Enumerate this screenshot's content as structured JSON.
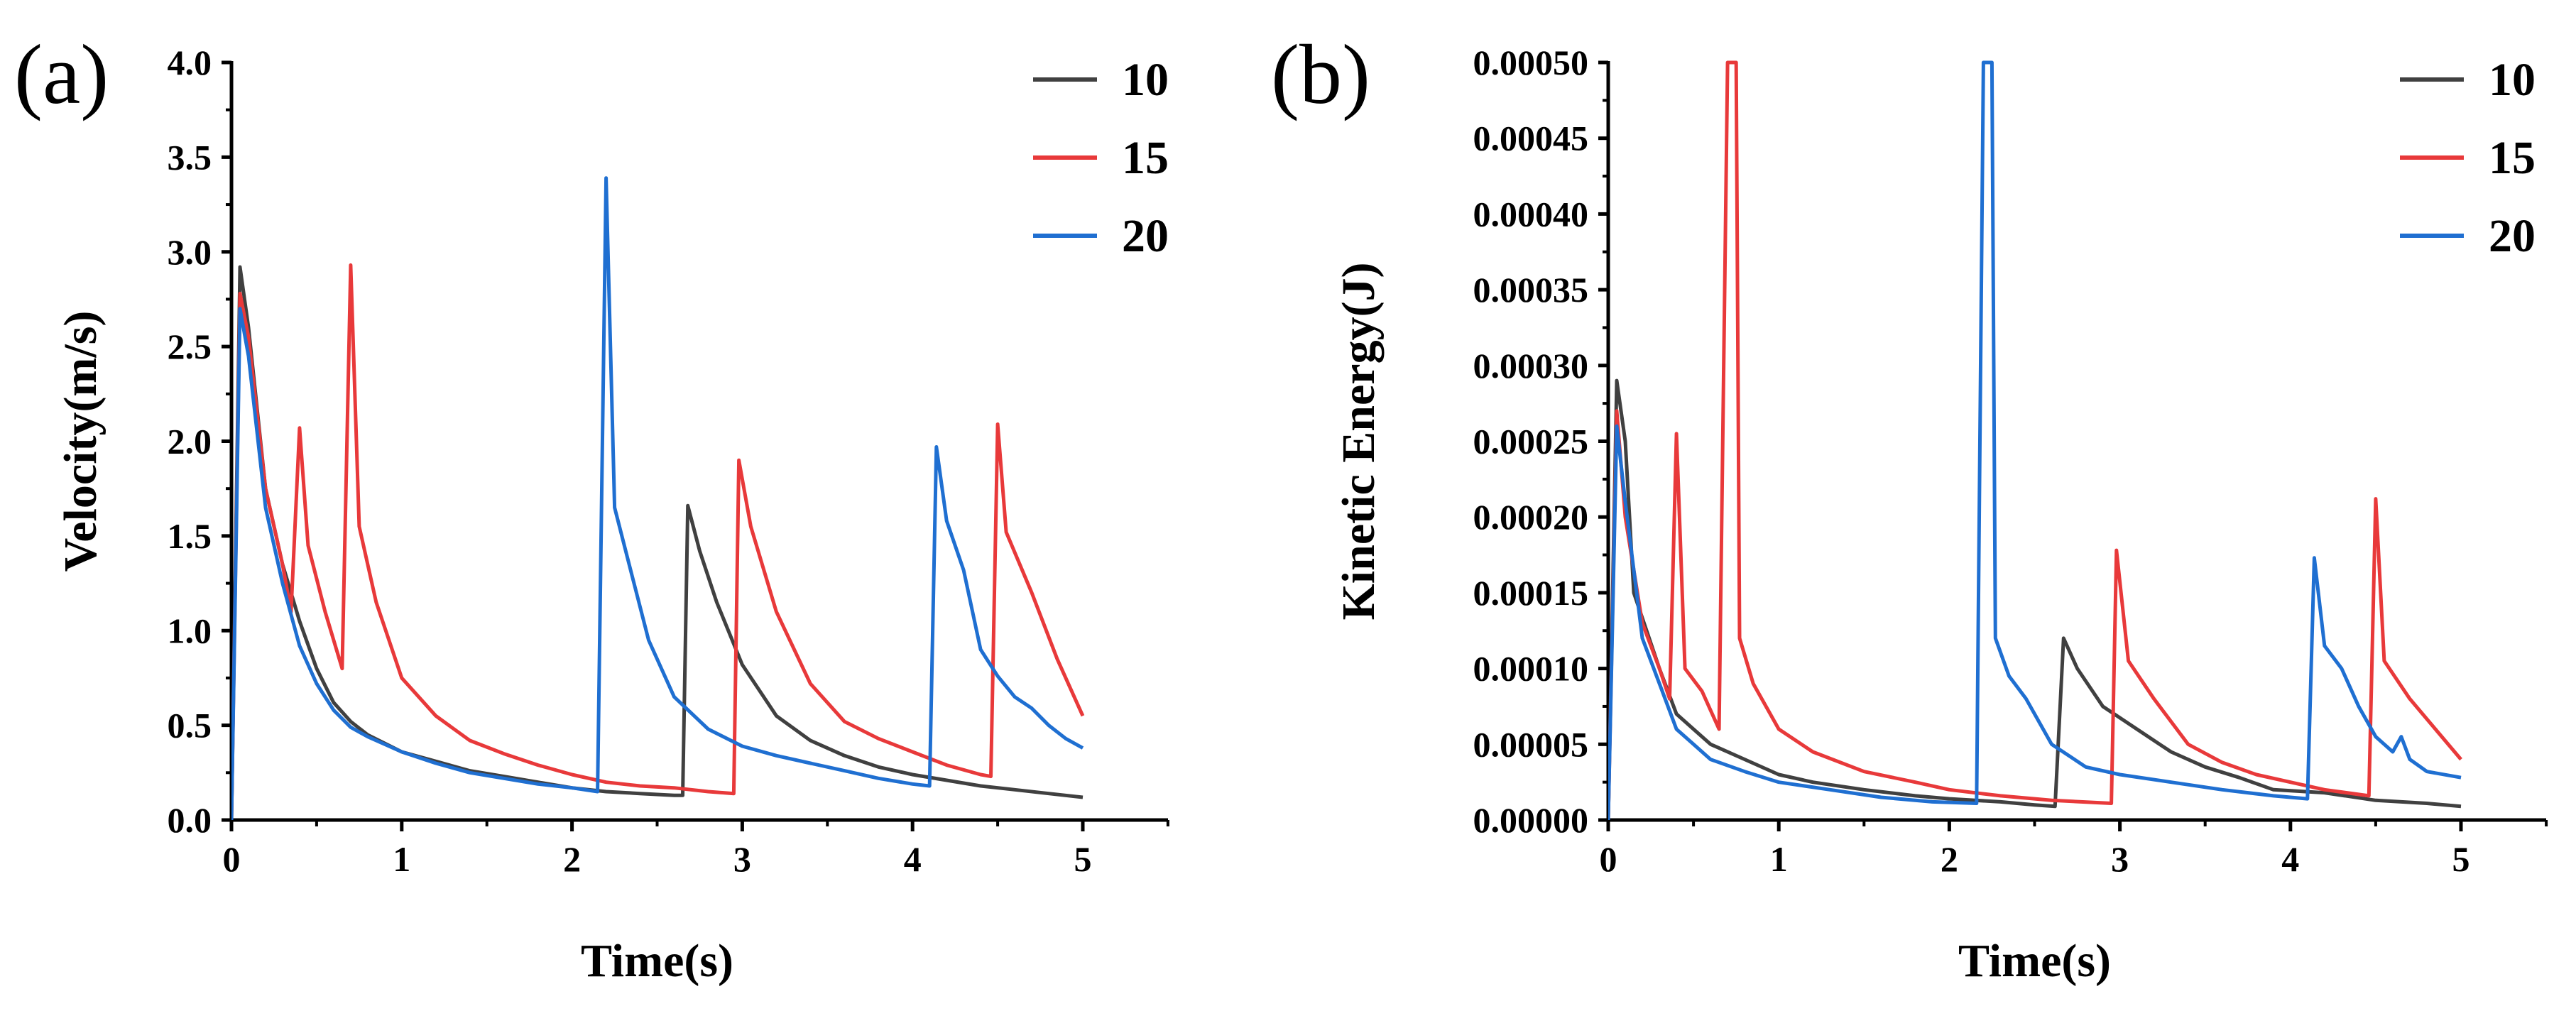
{
  "colors": {
    "s10": "#404040",
    "s15": "#e8393a",
    "s20": "#1f6fd1"
  },
  "chart_data": [
    {
      "type": "line",
      "panel_label": "(a)",
      "xlabel": "Time(s)",
      "ylabel": "Velocity(m/s)",
      "xlim": [
        0,
        5
      ],
      "ylim": [
        0,
        4.0
      ],
      "xticks": [
        "0",
        "1",
        "2",
        "3",
        "4",
        "5"
      ],
      "yticks": [
        "0.0",
        "0.5",
        "1.0",
        "1.5",
        "2.0",
        "2.5",
        "3.0",
        "3.5",
        "4.0"
      ],
      "legend": {
        "position": "top-right",
        "entries": [
          "10",
          "15",
          "20"
        ]
      },
      "series": [
        {
          "name": "10",
          "color": "#404040",
          "points": [
            [
              0,
              0
            ],
            [
              0.05,
              2.92
            ],
            [
              0.1,
              2.6
            ],
            [
              0.2,
              1.75
            ],
            [
              0.3,
              1.35
            ],
            [
              0.4,
              1.05
            ],
            [
              0.5,
              0.8
            ],
            [
              0.6,
              0.62
            ],
            [
              0.7,
              0.52
            ],
            [
              0.8,
              0.45
            ],
            [
              1.0,
              0.36
            ],
            [
              1.2,
              0.31
            ],
            [
              1.4,
              0.26
            ],
            [
              1.6,
              0.23
            ],
            [
              1.8,
              0.2
            ],
            [
              2.0,
              0.17
            ],
            [
              2.2,
              0.15
            ],
            [
              2.4,
              0.14
            ],
            [
              2.6,
              0.13
            ],
            [
              2.65,
              0.13
            ],
            [
              2.68,
              1.66
            ],
            [
              2.75,
              1.42
            ],
            [
              2.85,
              1.15
            ],
            [
              3.0,
              0.82
            ],
            [
              3.2,
              0.55
            ],
            [
              3.4,
              0.42
            ],
            [
              3.6,
              0.34
            ],
            [
              3.8,
              0.28
            ],
            [
              4.0,
              0.24
            ],
            [
              4.2,
              0.21
            ],
            [
              4.4,
              0.18
            ],
            [
              4.6,
              0.16
            ],
            [
              4.8,
              0.14
            ],
            [
              5.0,
              0.12
            ]
          ]
        },
        {
          "name": "15",
          "color": "#e8393a",
          "points": [
            [
              0,
              0
            ],
            [
              0.05,
              2.78
            ],
            [
              0.1,
              2.55
            ],
            [
              0.2,
              1.75
            ],
            [
              0.3,
              1.35
            ],
            [
              0.35,
              1.1
            ],
            [
              0.4,
              2.07
            ],
            [
              0.45,
              1.45
            ],
            [
              0.55,
              1.1
            ],
            [
              0.65,
              0.8
            ],
            [
              0.7,
              2.93
            ],
            [
              0.75,
              1.55
            ],
            [
              0.85,
              1.15
            ],
            [
              1.0,
              0.75
            ],
            [
              1.2,
              0.55
            ],
            [
              1.4,
              0.42
            ],
            [
              1.6,
              0.35
            ],
            [
              1.8,
              0.29
            ],
            [
              2.0,
              0.24
            ],
            [
              2.2,
              0.2
            ],
            [
              2.4,
              0.18
            ],
            [
              2.6,
              0.17
            ],
            [
              2.8,
              0.15
            ],
            [
              2.95,
              0.14
            ],
            [
              2.98,
              1.9
            ],
            [
              3.05,
              1.55
            ],
            [
              3.2,
              1.1
            ],
            [
              3.4,
              0.72
            ],
            [
              3.6,
              0.52
            ],
            [
              3.8,
              0.43
            ],
            [
              4.0,
              0.36
            ],
            [
              4.2,
              0.29
            ],
            [
              4.4,
              0.24
            ],
            [
              4.46,
              0.23
            ],
            [
              4.5,
              2.09
            ],
            [
              4.55,
              1.52
            ],
            [
              4.7,
              1.2
            ],
            [
              4.85,
              0.85
            ],
            [
              5.0,
              0.55
            ]
          ]
        },
        {
          "name": "20",
          "color": "#1f6fd1",
          "points": [
            [
              0,
              0
            ],
            [
              0.05,
              2.7
            ],
            [
              0.1,
              2.45
            ],
            [
              0.2,
              1.65
            ],
            [
              0.3,
              1.25
            ],
            [
              0.4,
              0.92
            ],
            [
              0.5,
              0.72
            ],
            [
              0.6,
              0.58
            ],
            [
              0.7,
              0.49
            ],
            [
              0.8,
              0.44
            ],
            [
              1.0,
              0.36
            ],
            [
              1.2,
              0.3
            ],
            [
              1.4,
              0.25
            ],
            [
              1.6,
              0.22
            ],
            [
              1.8,
              0.19
            ],
            [
              2.0,
              0.17
            ],
            [
              2.15,
              0.15
            ],
            [
              2.2,
              3.39
            ],
            [
              2.25,
              1.65
            ],
            [
              2.35,
              1.3
            ],
            [
              2.45,
              0.95
            ],
            [
              2.6,
              0.65
            ],
            [
              2.8,
              0.48
            ],
            [
              3.0,
              0.39
            ],
            [
              3.2,
              0.34
            ],
            [
              3.4,
              0.3
            ],
            [
              3.6,
              0.26
            ],
            [
              3.8,
              0.22
            ],
            [
              4.0,
              0.19
            ],
            [
              4.1,
              0.18
            ],
            [
              4.14,
              1.97
            ],
            [
              4.2,
              1.58
            ],
            [
              4.3,
              1.32
            ],
            [
              4.4,
              0.9
            ],
            [
              4.5,
              0.76
            ],
            [
              4.6,
              0.65
            ],
            [
              4.7,
              0.59
            ],
            [
              4.8,
              0.5
            ],
            [
              4.9,
              0.43
            ],
            [
              5.0,
              0.38
            ]
          ]
        }
      ]
    },
    {
      "type": "line",
      "panel_label": "(b)",
      "xlabel": "Time(s)",
      "ylabel": "Kinetic Energy(J)",
      "xlim": [
        0,
        5
      ],
      "ylim": [
        0,
        0.0005
      ],
      "xticks": [
        "0",
        "1",
        "2",
        "3",
        "4",
        "5"
      ],
      "yticks": [
        "0.00000",
        "0.00005",
        "0.00010",
        "0.00015",
        "0.00020",
        "0.00025",
        "0.00030",
        "0.00035",
        "0.00040",
        "0.00045",
        "0.00050"
      ],
      "legend": {
        "position": "top-right",
        "entries": [
          "10",
          "15",
          "20"
        ]
      },
      "series": [
        {
          "name": "10",
          "color": "#404040",
          "points": [
            [
              0,
              0
            ],
            [
              0.05,
              0.00029
            ],
            [
              0.1,
              0.00025
            ],
            [
              0.15,
              0.00015
            ],
            [
              0.3,
              0.0001
            ],
            [
              0.4,
              7e-05
            ],
            [
              0.5,
              6e-05
            ],
            [
              0.6,
              5e-05
            ],
            [
              0.8,
              4e-05
            ],
            [
              1.0,
              3e-05
            ],
            [
              1.2,
              2.5e-05
            ],
            [
              1.5,
              2e-05
            ],
            [
              1.8,
              1.6e-05
            ],
            [
              2.0,
              1.4e-05
            ],
            [
              2.3,
              1.2e-05
            ],
            [
              2.5,
              1e-05
            ],
            [
              2.62,
              9e-06
            ],
            [
              2.67,
              0.00012
            ],
            [
              2.75,
              0.0001
            ],
            [
              2.9,
              7.5e-05
            ],
            [
              3.1,
              6e-05
            ],
            [
              3.3,
              4.5e-05
            ],
            [
              3.5,
              3.5e-05
            ],
            [
              3.7,
              2.8e-05
            ],
            [
              3.9,
              2e-05
            ],
            [
              4.2,
              1.8e-05
            ],
            [
              4.5,
              1.3e-05
            ],
            [
              4.8,
              1.1e-05
            ],
            [
              5.0,
              9e-06
            ]
          ]
        },
        {
          "name": "15",
          "color": "#e8393a",
          "points": [
            [
              0,
              0
            ],
            [
              0.05,
              0.00027
            ],
            [
              0.1,
              0.0002
            ],
            [
              0.2,
              0.00013
            ],
            [
              0.3,
              0.0001
            ],
            [
              0.36,
              8e-05
            ],
            [
              0.4,
              0.000255
            ],
            [
              0.45,
              0.0001
            ],
            [
              0.55,
              8.5e-05
            ],
            [
              0.65,
              6e-05
            ],
            [
              0.7,
              0.0005
            ],
            [
              0.75,
              0.0005
            ],
            [
              0.77,
              0.00012
            ],
            [
              0.85,
              9e-05
            ],
            [
              1.0,
              6e-05
            ],
            [
              1.2,
              4.5e-05
            ],
            [
              1.5,
              3.2e-05
            ],
            [
              1.8,
              2.5e-05
            ],
            [
              2.0,
              2e-05
            ],
            [
              2.3,
              1.6e-05
            ],
            [
              2.6,
              1.3e-05
            ],
            [
              2.95,
              1.1e-05
            ],
            [
              2.98,
              0.000178
            ],
            [
              3.05,
              0.000105
            ],
            [
              3.2,
              8e-05
            ],
            [
              3.4,
              5e-05
            ],
            [
              3.6,
              3.8e-05
            ],
            [
              3.8,
              3e-05
            ],
            [
              4.0,
              2.5e-05
            ],
            [
              4.2,
              2e-05
            ],
            [
              4.46,
              1.6e-05
            ],
            [
              4.5,
              0.000212
            ],
            [
              4.55,
              0.000105
            ],
            [
              4.7,
              8e-05
            ],
            [
              4.85,
              6e-05
            ],
            [
              5.0,
              4e-05
            ]
          ]
        },
        {
          "name": "20",
          "color": "#1f6fd1",
          "points": [
            [
              0,
              0
            ],
            [
              0.05,
              0.00026
            ],
            [
              0.1,
              0.00021
            ],
            [
              0.2,
              0.00012
            ],
            [
              0.3,
              9e-05
            ],
            [
              0.4,
              6e-05
            ],
            [
              0.5,
              5e-05
            ],
            [
              0.6,
              4e-05
            ],
            [
              0.8,
              3.2e-05
            ],
            [
              1.0,
              2.5e-05
            ],
            [
              1.3,
              2e-05
            ],
            [
              1.6,
              1.5e-05
            ],
            [
              1.9,
              1.2e-05
            ],
            [
              2.16,
              1.1e-05
            ],
            [
              2.2,
              0.0005
            ],
            [
              2.25,
              0.0005
            ],
            [
              2.27,
              0.00012
            ],
            [
              2.35,
              9.5e-05
            ],
            [
              2.45,
              8e-05
            ],
            [
              2.6,
              5e-05
            ],
            [
              2.8,
              3.5e-05
            ],
            [
              3.0,
              3e-05
            ],
            [
              3.3,
              2.5e-05
            ],
            [
              3.6,
              2e-05
            ],
            [
              3.9,
              1.6e-05
            ],
            [
              4.1,
              1.4e-05
            ],
            [
              4.14,
              0.000173
            ],
            [
              4.2,
              0.000115
            ],
            [
              4.3,
              0.0001
            ],
            [
              4.4,
              7.5e-05
            ],
            [
              4.5,
              5.5e-05
            ],
            [
              4.6,
              4.5e-05
            ],
            [
              4.65,
              5.5e-05
            ],
            [
              4.7,
              4e-05
            ],
            [
              4.8,
              3.2e-05
            ],
            [
              5.0,
              2.8e-05
            ]
          ]
        }
      ]
    }
  ]
}
